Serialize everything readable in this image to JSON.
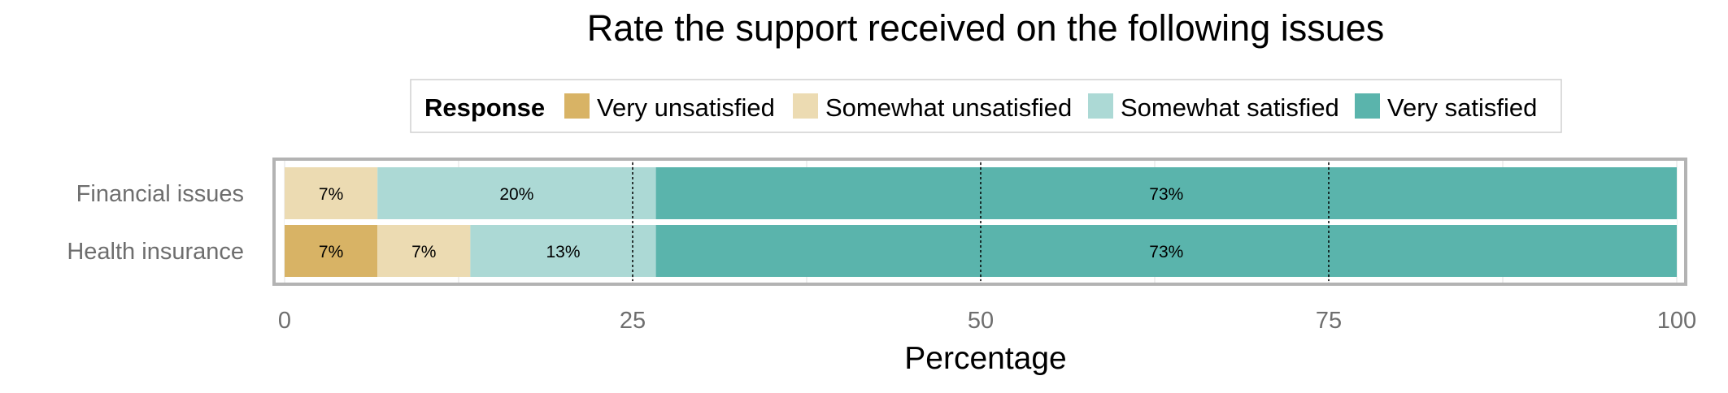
{
  "chart_data": {
    "type": "bar",
    "orientation": "horizontal",
    "stacked": true,
    "title": "Rate the support received on the following issues",
    "xlabel": "Percentage",
    "ylabel": "",
    "xlim": [
      0,
      100
    ],
    "x_ticks": [
      0,
      25,
      50,
      75,
      100
    ],
    "x_tick_labels": [
      "0",
      "25",
      "50",
      "75",
      "100"
    ],
    "categories": [
      "Financial issues",
      "Health insurance"
    ],
    "legend": {
      "title": "Response",
      "placement": "top-center"
    },
    "series": [
      {
        "name": "Very unsatisfied",
        "color": "#d8b365",
        "values": [
          0,
          6.67
        ],
        "labels": [
          "",
          "7%"
        ]
      },
      {
        "name": "Somewhat unsatisfied",
        "color": "#ecdbb2",
        "values": [
          6.67,
          6.67
        ],
        "labels": [
          "7%",
          "7%"
        ]
      },
      {
        "name": "Somewhat satisfied",
        "color": "#acd9d5",
        "values": [
          20,
          13.33
        ],
        "labels": [
          "20%",
          "13%"
        ]
      },
      {
        "name": "Very satisfied",
        "color": "#5ab4ac",
        "values": [
          73.33,
          73.33
        ],
        "labels": [
          "73%",
          "73%"
        ]
      }
    ],
    "reference_lines": [
      25,
      50,
      75
    ],
    "grid": true
  }
}
